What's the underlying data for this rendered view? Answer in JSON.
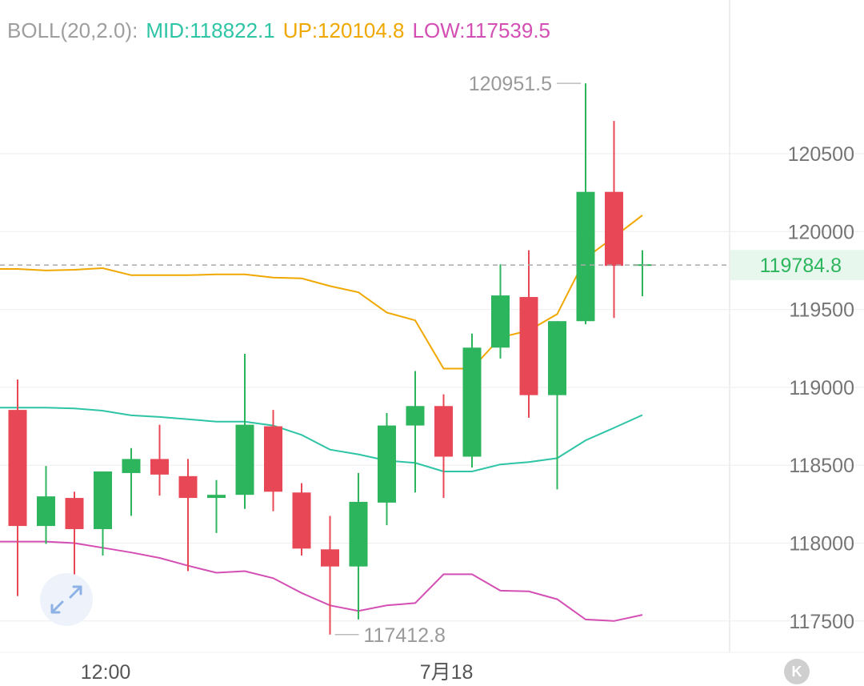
{
  "indicator": {
    "name_label": "BOLL(20,2.0):",
    "mid_label": "MID:118822.1",
    "up_label": "UP:120104.8",
    "low_label": "LOW:117539.5",
    "name_color": "#9e9e9e",
    "mid_color": "#2ec4a6",
    "up_color": "#f0a800",
    "low_color": "#d44fb4"
  },
  "current_price_label": "119784.8",
  "max_label": "120951.5",
  "min_label": "117412.8",
  "expand_icon": "expand-arrows-icon",
  "k_icon": "K",
  "colors": {
    "up": "#2db55d",
    "down": "#e84855",
    "grid": "#eeeeee",
    "axis_text": "#757575",
    "price_line": "#aaaaaa",
    "extreme_text": "#9a9a9a",
    "current_price_text": "#2db55d",
    "current_price_bg": "#e8f7ee"
  },
  "chart_data": {
    "type": "candlestick",
    "yticks": [
      120500,
      120000,
      119500,
      119000,
      118500,
      118000,
      117500
    ],
    "xticks": [
      "12:00",
      "7月18"
    ],
    "current_price": 119784.8,
    "max_price": 120951.5,
    "min_price": 117412.8,
    "candles": [
      {
        "open": 118855,
        "close": 118110,
        "high": 119050,
        "low": 117660
      },
      {
        "open": 118110,
        "close": 118300,
        "high": 118495,
        "low": 117995
      },
      {
        "open": 118290,
        "close": 118090,
        "high": 118330,
        "low": 117700
      },
      {
        "open": 118090,
        "close": 118460,
        "high": 118460,
        "low": 117920
      },
      {
        "open": 118450,
        "close": 118540,
        "high": 118610,
        "low": 118175
      },
      {
        "open": 118540,
        "close": 118440,
        "high": 118760,
        "low": 118305
      },
      {
        "open": 118430,
        "close": 118290,
        "high": 118540,
        "low": 117820
      },
      {
        "open": 118290,
        "close": 118310,
        "high": 118405,
        "low": 118065
      },
      {
        "open": 118310,
        "close": 118760,
        "high": 119215,
        "low": 118220
      },
      {
        "open": 118750,
        "close": 118330,
        "high": 118855,
        "low": 118205
      },
      {
        "open": 118325,
        "close": 117965,
        "high": 118385,
        "low": 117920
      },
      {
        "open": 117960,
        "close": 117850,
        "high": 118175,
        "low": 117412.8
      },
      {
        "open": 117850,
        "close": 118265,
        "high": 118450,
        "low": 117510
      },
      {
        "open": 118260,
        "close": 118755,
        "high": 118835,
        "low": 118115
      },
      {
        "open": 118755,
        "close": 118880,
        "high": 119105,
        "low": 118325
      },
      {
        "open": 118880,
        "close": 118555,
        "high": 118955,
        "low": 118290
      },
      {
        "open": 118555,
        "close": 119255,
        "high": 119345,
        "low": 118485
      },
      {
        "open": 119255,
        "close": 119590,
        "high": 119790,
        "low": 119185
      },
      {
        "open": 119580,
        "close": 118950,
        "high": 119880,
        "low": 118805
      },
      {
        "open": 118950,
        "close": 119425,
        "high": 119425,
        "low": 118345
      },
      {
        "open": 119425,
        "close": 120255,
        "high": 120951.5,
        "low": 119405
      },
      {
        "open": 120255,
        "close": 119780,
        "high": 120710,
        "low": 119445
      },
      {
        "open": 119780,
        "close": 119790,
        "high": 119880,
        "low": 119585
      }
    ],
    "boll": {
      "up": [
        119760,
        119750,
        119755,
        119765,
        119720,
        119720,
        119720,
        119725,
        119725,
        119705,
        119700,
        119650,
        119610,
        119480,
        119430,
        119120,
        119120,
        119320,
        119365,
        119470,
        119830,
        119965,
        120104.8
      ],
      "mid": [
        118870,
        118870,
        118865,
        118850,
        118820,
        118810,
        118795,
        118780,
        118780,
        118755,
        118695,
        118600,
        118570,
        118530,
        118515,
        118460,
        118460,
        118505,
        118520,
        118545,
        118660,
        118740,
        118822.1
      ],
      "low": [
        118010,
        118010,
        118000,
        117970,
        117940,
        117905,
        117855,
        117810,
        117820,
        117775,
        117680,
        117600,
        117565,
        117600,
        117615,
        117800,
        117800,
        117695,
        117690,
        117640,
        117510,
        117500,
        117539.5
      ]
    }
  }
}
